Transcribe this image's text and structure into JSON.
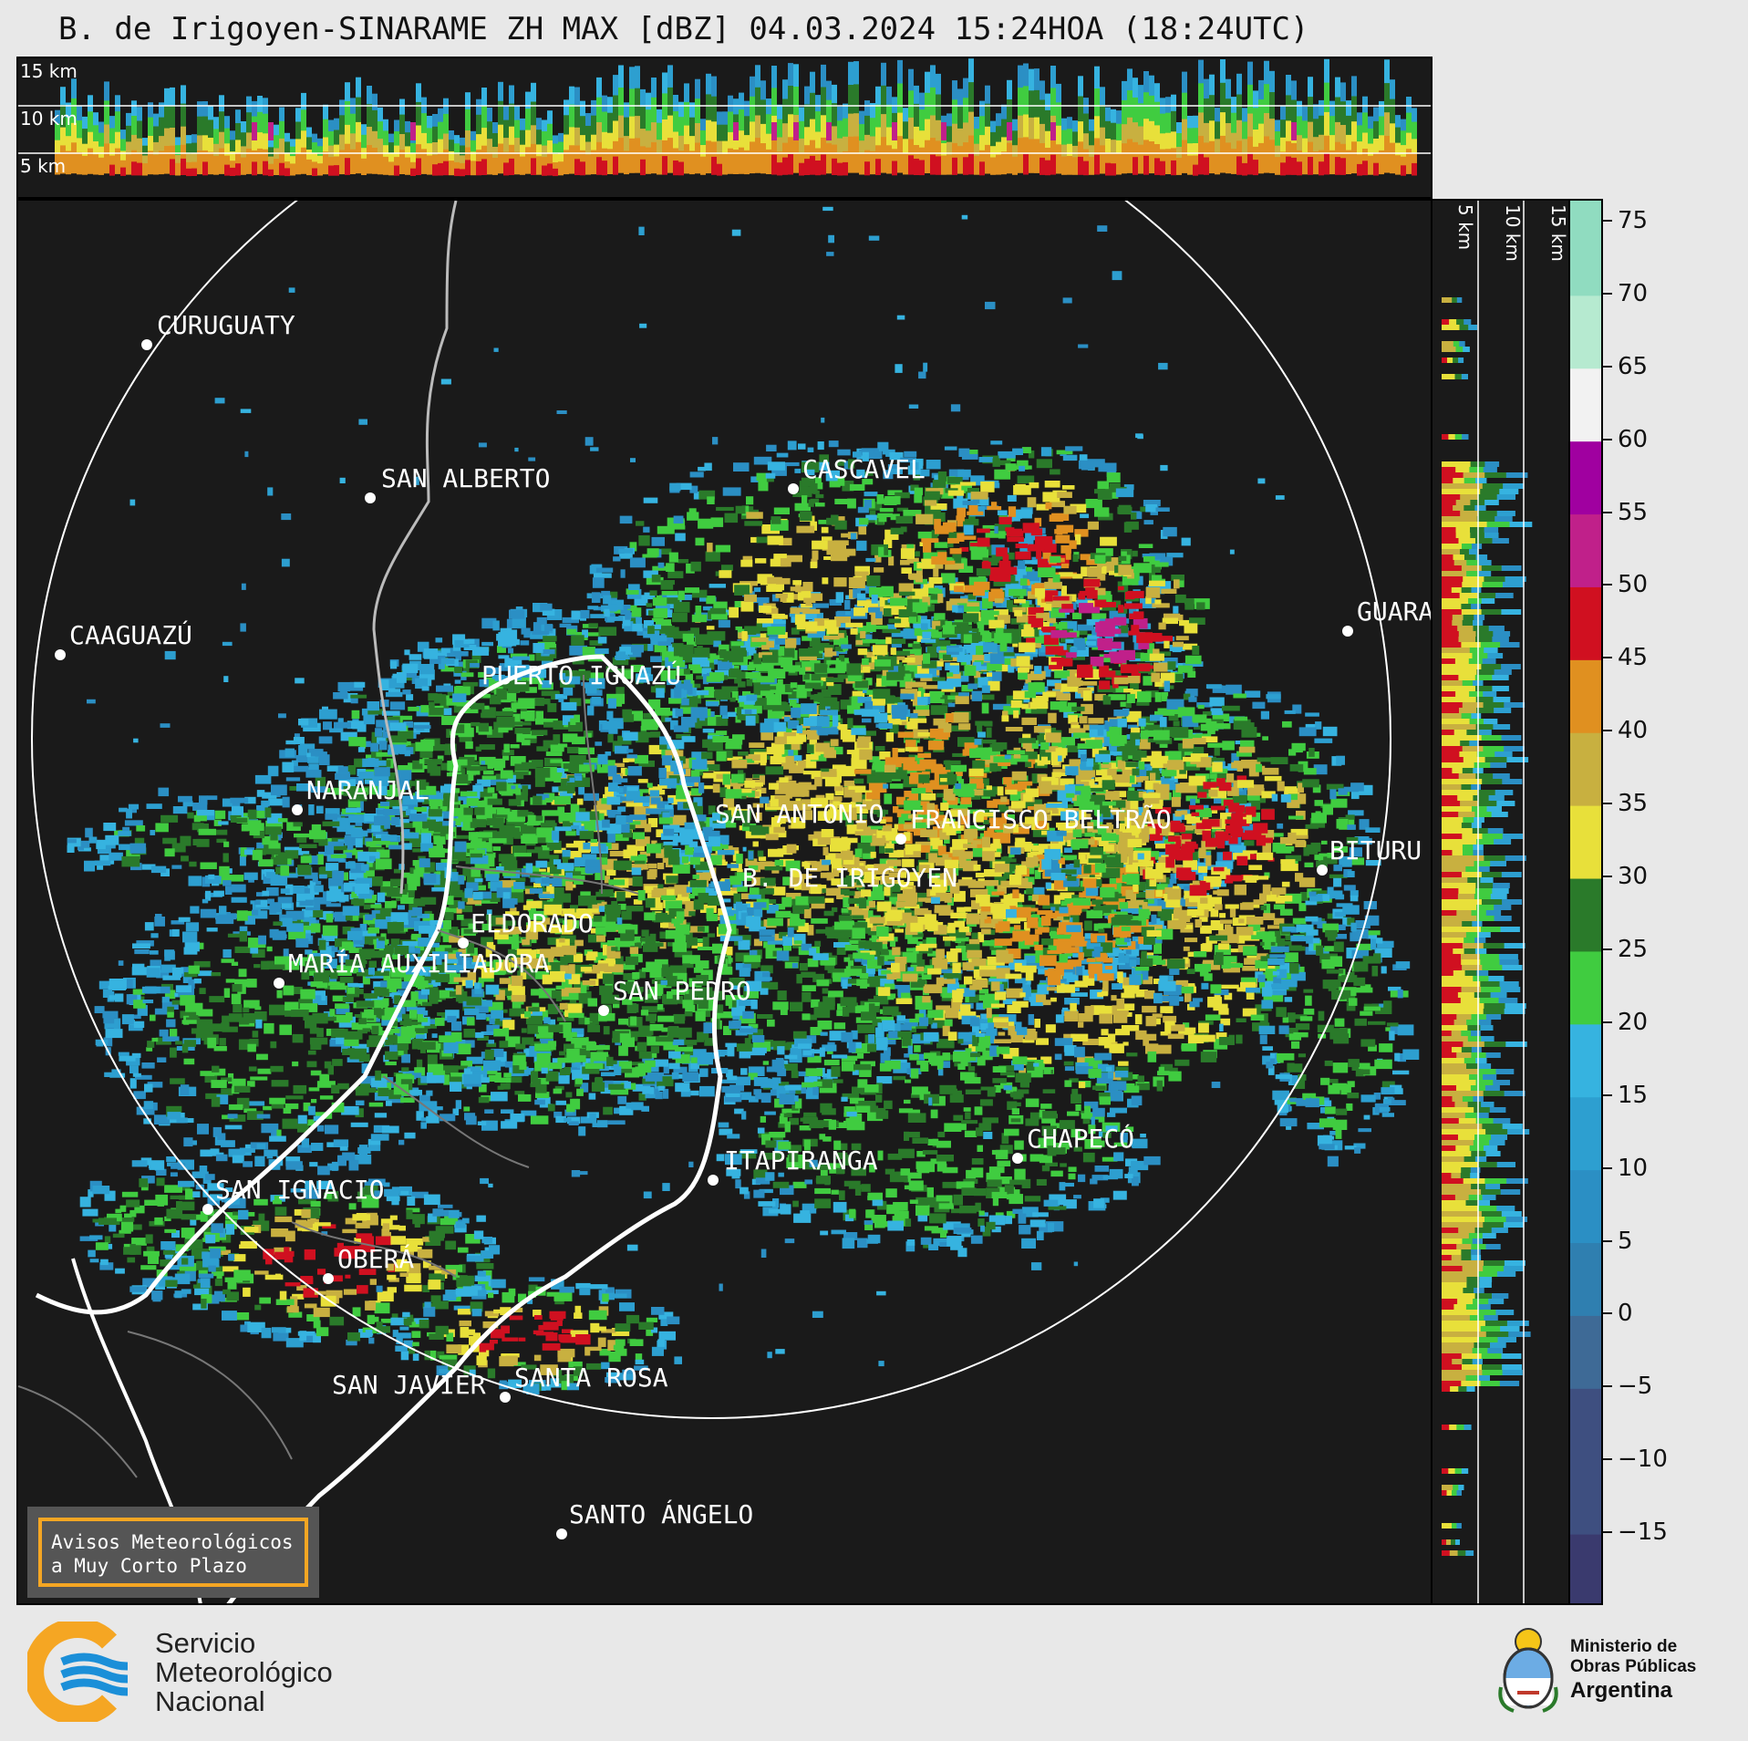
{
  "title": "B. de Irigoyen-SINARAME ZH MAX [dBZ] 04.03.2024 15:24HOA (18:24UTC)",
  "top_panel": {
    "height_labels": [
      "15 km",
      "10 km",
      "5 km"
    ]
  },
  "side_panel": {
    "height_labels": [
      "5 km",
      "10 km",
      "15 km"
    ]
  },
  "cities": [
    {
      "name": "CURUGUATY"
    },
    {
      "name": "SAN ALBERTO"
    },
    {
      "name": "CASCAVEL"
    },
    {
      "name": "CAAGUAZÚ"
    },
    {
      "name": "GUARA"
    },
    {
      "name": "PUERTO IGUAZÚ"
    },
    {
      "name": "NARANJAL"
    },
    {
      "name": "SAN ANTONIO"
    },
    {
      "name": "FRANCISCO BELTRÃO"
    },
    {
      "name": "B. DE IRIGOYEN"
    },
    {
      "name": "BITURU"
    },
    {
      "name": "ELDORADO"
    },
    {
      "name": "MARÍA AUXILIADORA"
    },
    {
      "name": "SAN PEDRO"
    },
    {
      "name": "CHAPECÓ"
    },
    {
      "name": "ITAPIRANGA"
    },
    {
      "name": "SAN IGNACIO"
    },
    {
      "name": "OBERÁ"
    },
    {
      "name": "SAN JAVIER"
    },
    {
      "name": "SANTA ROSA"
    },
    {
      "name": "SANTO ÁNGELO"
    }
  ],
  "colorbar": {
    "unit": "dBZ",
    "ticks": [
      "75",
      "70",
      "65",
      "60",
      "55",
      "50",
      "45",
      "40",
      "35",
      "30",
      "25",
      "20",
      "15",
      "10",
      "5",
      "0",
      "−5",
      "−10",
      "−15"
    ],
    "colors": {
      "lt_-15": "#3a3a6e",
      "-15_-5": "#3e4f80",
      "-5_0": "#3e6a96",
      "0_5": "#2f7fb0",
      "5_10": "#2b8fc4",
      "10_15": "#2d9fd0",
      "15_20": "#36b3e0",
      "20_25": "#40cc40",
      "25_30": "#2a7a2a",
      "30_35": "#e8e03a",
      "35_40": "#c8b040",
      "40_45": "#e09020",
      "45_50": "#d01020",
      "50_55": "#c0208a",
      "55_60": "#a000a0",
      "60_65": "#f2f2f2",
      "65_70": "#b6ead0",
      "70_75": "#90dcc0"
    }
  },
  "avisos_box": {
    "line1": "Avisos Meteorológicos",
    "line2": "a Muy Corto Plazo",
    "border_color": "#f5a623"
  },
  "footer": {
    "smn_line1": "Servicio",
    "smn_line2": "Meteorológico",
    "smn_line3": "Nacional",
    "min_line1": "Ministerio de",
    "min_line2": "Obras Públicas",
    "min_line3": "Argentina"
  }
}
